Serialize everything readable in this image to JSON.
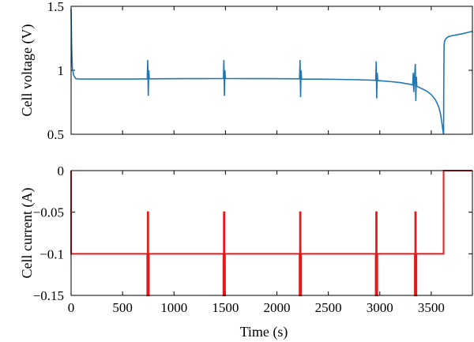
{
  "chart_data": [
    {
      "type": "line",
      "xlabel": "",
      "ylabel": "Cell voltage (V)",
      "xlim": [
        0,
        3900
      ],
      "ylim": [
        0.5,
        1.5
      ],
      "x_ticks": [
        0,
        500,
        1000,
        1500,
        2000,
        2500,
        3000,
        3500
      ],
      "y_ticks": [
        0.5,
        1,
        1.5
      ],
      "y_tick_labels": [
        "0.5",
        "1",
        "1.5"
      ],
      "series": [
        {
          "color": "#1f77b4",
          "x": [
            0,
            5,
            12,
            25,
            45,
            80,
            200,
            400,
            600,
            740,
            745,
            750,
            755,
            760,
            900,
            1100,
            1300,
            1480,
            1485,
            1490,
            1495,
            1500,
            1700,
            1900,
            2100,
            2220,
            2225,
            2230,
            2235,
            2240,
            2400,
            2600,
            2800,
            2960,
            2965,
            2970,
            2975,
            2980,
            3100,
            3200,
            3300,
            3320,
            3325,
            3330,
            3340,
            3345,
            3350,
            3355,
            3360,
            3400,
            3450,
            3500,
            3540,
            3570,
            3590,
            3605,
            3615,
            3620,
            3622,
            3625,
            3630,
            3640,
            3660,
            3700,
            3800,
            3900
          ],
          "y": [
            1.48,
            1.2,
            1.02,
            0.96,
            0.935,
            0.932,
            0.932,
            0.932,
            0.932,
            0.933,
            1.08,
            0.8,
            1.0,
            0.933,
            0.934,
            0.935,
            0.935,
            0.936,
            1.08,
            0.8,
            1.0,
            0.936,
            0.935,
            0.935,
            0.934,
            0.933,
            1.08,
            0.79,
            1.0,
            0.932,
            0.931,
            0.929,
            0.926,
            0.922,
            1.07,
            0.78,
            0.98,
            0.92,
            0.912,
            0.904,
            0.89,
            0.885,
            0.98,
            0.83,
            0.98,
            1.05,
            0.76,
            0.95,
            0.875,
            0.86,
            0.84,
            0.81,
            0.77,
            0.72,
            0.66,
            0.58,
            0.52,
            0.5,
            0.95,
            1.2,
            1.23,
            1.245,
            1.26,
            1.27,
            1.285,
            1.305
          ]
        }
      ]
    },
    {
      "type": "line",
      "xlabel": "Time (s)",
      "ylabel": "Cell current (A)",
      "xlim": [
        0,
        3900
      ],
      "ylim": [
        -0.15,
        0
      ],
      "x_ticks": [
        0,
        500,
        1000,
        1500,
        2000,
        2500,
        3000,
        3500
      ],
      "y_ticks": [
        0,
        -0.05,
        -0.1,
        -0.15
      ],
      "y_tick_labels": [
        "0",
        "−0.05",
        "−0.1",
        "−0.15"
      ],
      "series": [
        {
          "color": "#e31a1c",
          "x": [
            0,
            0,
            3,
            3,
            740,
            740,
            744,
            744,
            750,
            750,
            756,
            756,
            1480,
            1480,
            1484,
            1484,
            1490,
            1490,
            1496,
            1496,
            2220,
            2220,
            2224,
            2224,
            2230,
            2230,
            2236,
            2236,
            2960,
            2960,
            2964,
            2964,
            2970,
            2970,
            2976,
            2976,
            3340,
            3340,
            3344,
            3344,
            3350,
            3350,
            3356,
            3356,
            3620,
            3620,
            3900
          ],
          "y": [
            0,
            -0.1,
            -0.1,
            -0.1,
            -0.1,
            -0.15,
            -0.15,
            -0.05,
            -0.05,
            -0.15,
            -0.15,
            -0.1,
            -0.1,
            -0.15,
            -0.15,
            -0.05,
            -0.05,
            -0.15,
            -0.15,
            -0.1,
            -0.1,
            -0.15,
            -0.15,
            -0.05,
            -0.05,
            -0.15,
            -0.15,
            -0.1,
            -0.1,
            -0.15,
            -0.15,
            -0.05,
            -0.05,
            -0.15,
            -0.15,
            -0.1,
            -0.1,
            -0.15,
            -0.15,
            -0.05,
            -0.05,
            -0.15,
            -0.15,
            -0.1,
            -0.1,
            0,
            0
          ]
        }
      ]
    }
  ]
}
